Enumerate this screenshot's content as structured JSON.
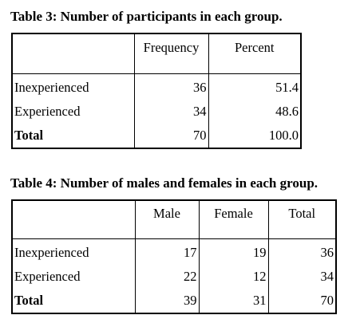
{
  "table3": {
    "caption": "Table 3: Number of participants in each group.",
    "headers": [
      "",
      "Frequency",
      "Percent"
    ],
    "rows": [
      {
        "label": "Inexperienced",
        "frequency": "36",
        "percent": "51.4"
      },
      {
        "label": "Experienced",
        "frequency": "34",
        "percent": "48.6"
      },
      {
        "label": "Total",
        "frequency": "70",
        "percent": "100.0"
      }
    ]
  },
  "table4": {
    "caption": "Table 4: Number of males and females in each group.",
    "headers": [
      "",
      "Male",
      "Female",
      "Total"
    ],
    "rows": [
      {
        "label": "Inexperienced",
        "male": "17",
        "female": "19",
        "total": "36"
      },
      {
        "label": "Experienced",
        "male": "22",
        "female": "12",
        "total": "34"
      },
      {
        "label": "Total",
        "male": "39",
        "female": "31",
        "total": "70"
      }
    ]
  }
}
